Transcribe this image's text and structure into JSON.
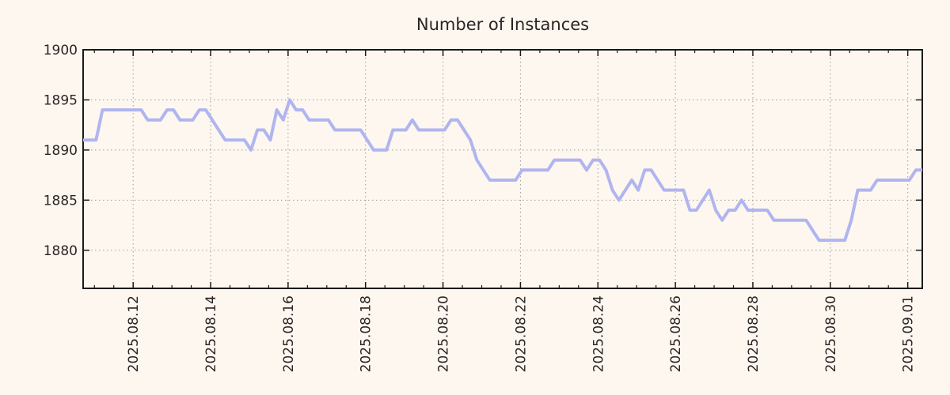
{
  "title": "Number of Instances",
  "colors": {
    "background": "#fdf7f0",
    "line": "#b0b5f0",
    "grid": "#9b9b9b",
    "axis": "#1a1a1a",
    "text": "#2b2424"
  },
  "chart_data": {
    "type": "line",
    "title": "Number of Instances",
    "xlabel": "",
    "ylabel": "",
    "grid": true,
    "legend": "none",
    "x_tick_labels": [
      "2025.08.12",
      "2025.08.14",
      "2025.08.16",
      "2025.08.18",
      "2025.08.20",
      "2025.08.22",
      "2025.08.24",
      "2025.08.26",
      "2025.08.28",
      "2025.08.30",
      "2025.09.01"
    ],
    "y_ticks": [
      1880,
      1885,
      1890,
      1895,
      1900
    ],
    "ylim": [
      1876.2,
      1900
    ],
    "x_start": "2025.08.10 ~16:00",
    "x_interval_hours": 4,
    "x_axis_steps": {
      "major_first": 7.75,
      "major_every": 12,
      "minor_first": 1.75,
      "minor_every": 3
    },
    "series": [
      {
        "name": "instances",
        "values": [
          1891,
          1891,
          1891,
          1894,
          1894,
          1894,
          1894,
          1894,
          1894,
          1894,
          1893,
          1893,
          1893,
          1894,
          1894,
          1893,
          1893,
          1893,
          1894,
          1894,
          1893,
          1892,
          1891,
          1891,
          1891,
          1891,
          1890,
          1892,
          1892,
          1891,
          1894,
          1893,
          1895,
          1894,
          1894,
          1893,
          1893,
          1893,
          1893,
          1892,
          1892,
          1892,
          1892,
          1892,
          1891,
          1890,
          1890,
          1890,
          1892,
          1892,
          1892,
          1893,
          1892,
          1892,
          1892,
          1892,
          1892,
          1893,
          1893,
          1892,
          1891,
          1889,
          1888,
          1887,
          1887,
          1887,
          1887,
          1887,
          1888,
          1888,
          1888,
          1888,
          1888,
          1889,
          1889,
          1889,
          1889,
          1889,
          1888,
          1889,
          1889,
          1888,
          1886,
          1885,
          1886,
          1887,
          1886,
          1888,
          1888,
          1887,
          1886,
          1886,
          1886,
          1886,
          1884,
          1884,
          1885,
          1886,
          1884,
          1883,
          1884,
          1884,
          1885,
          1884,
          1884,
          1884,
          1884,
          1883,
          1883,
          1883,
          1883,
          1883,
          1883,
          1882,
          1881,
          1881,
          1881,
          1881,
          1881,
          1883,
          1886,
          1886,
          1886,
          1887,
          1887,
          1887,
          1887,
          1887,
          1887,
          1888,
          1888
        ]
      }
    ]
  }
}
